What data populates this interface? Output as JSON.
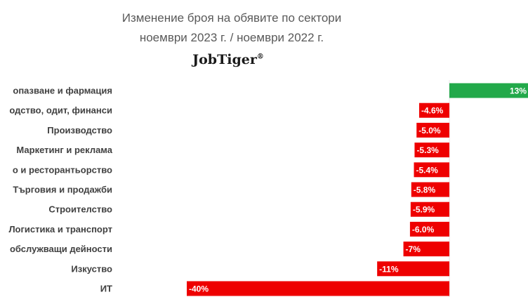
{
  "chart_data": {
    "type": "bar",
    "orientation": "horizontal",
    "title": "Изменение броя на обявите по сектори",
    "subtitle": "ноември 2023 г. / ноември 2022 г.",
    "logo_text": "JobTiger",
    "logo_mark": "®",
    "categories": [
      "опазване и фармация",
      "одство, одит, финанси",
      "Производство",
      "Маркетинг и реклама",
      "о и ресторантьорство",
      "Търговия и продажби",
      "Строителство",
      "Логистика и транспорт",
      "обслужващи дейности",
      "Изкуство",
      "ИТ"
    ],
    "values": [
      13,
      -4.6,
      -5.0,
      -5.3,
      -5.4,
      -5.8,
      -5.9,
      -6.0,
      -7,
      -11,
      -40
    ],
    "data_labels": [
      "13%",
      "-4.6%",
      "-5.0%",
      "-5.3%",
      "-5.4%",
      "-5.8%",
      "-5.9%",
      "-6.0%",
      "-7%",
      "-11%",
      "-40%"
    ],
    "colors": {
      "positive": "#22A94A",
      "negative": "#EE0000"
    },
    "grid": false,
    "legend": "none",
    "xlabel": "",
    "ylabel": ""
  }
}
